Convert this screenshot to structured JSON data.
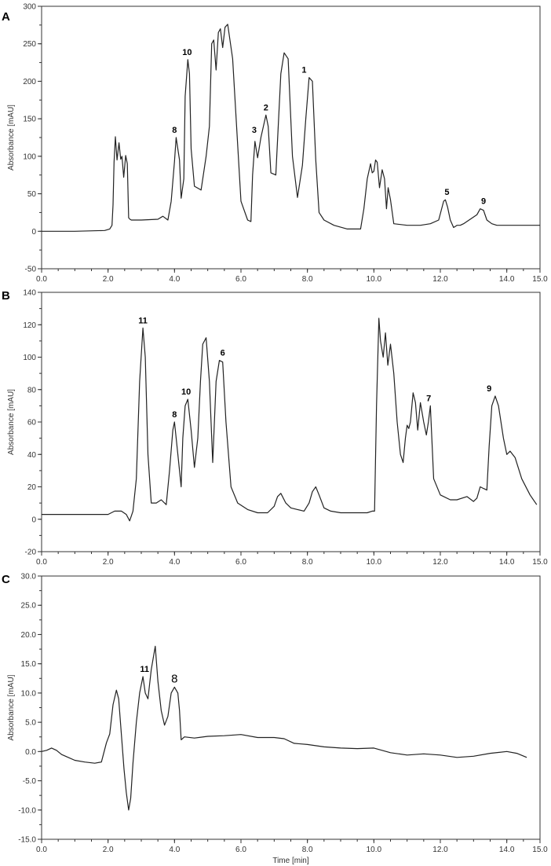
{
  "chart_data": [
    {
      "type": "line",
      "panel_label": "A",
      "ylabel": "Absorbance [mAU]",
      "xlabel": "",
      "xlim": [
        0,
        15
      ],
      "ylim": [
        -50,
        300
      ],
      "xticks": [
        "0.0",
        "2.0",
        "4.0",
        "6.0",
        "8.0",
        "10.0",
        "12.0",
        "14.0",
        "15.0"
      ],
      "xtick_values": [
        0,
        2,
        4,
        6,
        8,
        10,
        12,
        14,
        15
      ],
      "yticks": [
        "300",
        "250",
        "200",
        "150",
        "100",
        "50",
        "0",
        "-50"
      ],
      "ytick_values": [
        300,
        250,
        200,
        150,
        100,
        50,
        0,
        -50
      ],
      "series": [
        {
          "x": [
            0,
            1.0,
            1.9,
            2.05,
            2.12,
            2.15,
            2.18,
            2.22,
            2.27,
            2.33,
            2.38,
            2.42,
            2.47,
            2.53,
            2.58,
            2.62,
            2.66,
            2.7,
            3.0,
            3.5,
            3.65,
            3.8,
            3.9,
            4.0,
            4.05,
            4.15,
            4.2,
            4.28,
            4.32,
            4.4,
            4.45,
            4.5,
            4.6,
            4.8,
            4.95,
            5.05,
            5.12,
            5.18,
            5.25,
            5.32,
            5.38,
            5.45,
            5.52,
            5.6,
            5.75,
            6.0,
            6.2,
            6.3,
            6.35,
            6.42,
            6.5,
            6.6,
            6.75,
            6.82,
            6.9,
            7.05,
            7.2,
            7.3,
            7.42,
            7.55,
            7.7,
            7.85,
            7.95,
            8.05,
            8.15,
            8.25,
            8.35,
            8.5,
            8.8,
            9.2,
            9.6,
            9.7,
            9.8,
            9.9,
            9.95,
            10.0,
            10.05,
            10.1,
            10.17,
            10.25,
            10.32,
            10.38,
            10.43,
            10.5,
            10.6,
            11.0,
            11.4,
            11.7,
            11.95,
            12.1,
            12.15,
            12.22,
            12.3,
            12.4,
            12.5,
            12.6,
            12.7,
            12.9,
            13.1,
            13.2,
            13.3,
            13.4,
            13.55,
            13.7,
            14.0,
            14.5,
            15.0
          ],
          "y": [
            0,
            0,
            1,
            3,
            8,
            35,
            92,
            126,
            95,
            118,
            96,
            100,
            72,
            101,
            90,
            18,
            16,
            15,
            15,
            16,
            20,
            15,
            40,
            93,
            125,
            95,
            44,
            70,
            180,
            229,
            210,
            110,
            60,
            55,
            100,
            140,
            250,
            255,
            215,
            265,
            270,
            245,
            272,
            276,
            230,
            40,
            15,
            13,
            75,
            120,
            98,
            125,
            155,
            140,
            78,
            75,
            210,
            238,
            230,
            100,
            45,
            88,
            150,
            205,
            200,
            95,
            25,
            15,
            8,
            3,
            3,
            30,
            70,
            90,
            78,
            80,
            95,
            92,
            58,
            82,
            70,
            30,
            58,
            42,
            10,
            8,
            8,
            10,
            15,
            40,
            42,
            32,
            15,
            5,
            8,
            8,
            10,
            16,
            22,
            30,
            28,
            15,
            10,
            8,
            8,
            8,
            8
          ]
        }
      ],
      "annotations": [
        {
          "text": "8",
          "x": 4.0,
          "y": 125
        },
        {
          "text": "10",
          "x": 4.38,
          "y": 229
        },
        {
          "text": "3",
          "x": 6.4,
          "y": 125
        },
        {
          "text": "2",
          "x": 6.75,
          "y": 155
        },
        {
          "text": "1",
          "x": 7.9,
          "y": 205
        },
        {
          "text": "5",
          "x": 12.2,
          "y": 42
        },
        {
          "text": "9",
          "x": 13.3,
          "y": 30
        }
      ]
    },
    {
      "type": "line",
      "panel_label": "B",
      "ylabel": "Absorbance [mAU]",
      "xlabel": "",
      "xlim": [
        0,
        15
      ],
      "ylim": [
        -20,
        140
      ],
      "xticks": [
        "0.0",
        "2.0",
        "4.0",
        "6.0",
        "8.0",
        "10.0",
        "12.0",
        "14.0",
        "15.0"
      ],
      "xtick_values": [
        0,
        2,
        4,
        6,
        8,
        10,
        12,
        14,
        15
      ],
      "yticks": [
        "140",
        "120",
        "100",
        "80",
        "60",
        "40",
        "20",
        "0",
        "-20"
      ],
      "ytick_values": [
        140,
        120,
        100,
        80,
        60,
        40,
        20,
        0,
        -20
      ],
      "series": [
        {
          "x": [
            0,
            1.5,
            2.0,
            2.2,
            2.4,
            2.55,
            2.65,
            2.75,
            2.85,
            2.95,
            3.05,
            3.12,
            3.2,
            3.3,
            3.45,
            3.6,
            3.75,
            3.85,
            3.95,
            4.0,
            4.1,
            4.2,
            4.25,
            4.32,
            4.4,
            4.5,
            4.6,
            4.7,
            4.78,
            4.85,
            4.95,
            5.05,
            5.15,
            5.25,
            5.35,
            5.45,
            5.55,
            5.7,
            5.9,
            6.2,
            6.5,
            6.8,
            7.0,
            7.1,
            7.2,
            7.35,
            7.5,
            7.7,
            7.9,
            8.05,
            8.15,
            8.25,
            8.35,
            8.5,
            8.7,
            9.0,
            9.4,
            9.8,
            9.95,
            10.02,
            10.08,
            10.15,
            10.2,
            10.28,
            10.35,
            10.42,
            10.5,
            10.6,
            10.7,
            10.8,
            10.88,
            10.95,
            11.0,
            11.05,
            11.1,
            11.18,
            11.25,
            11.32,
            11.4,
            11.5,
            11.58,
            11.64,
            11.7,
            11.8,
            12.0,
            12.3,
            12.5,
            12.8,
            13.0,
            13.1,
            13.2,
            13.3,
            13.4,
            13.47,
            13.55,
            13.65,
            13.75,
            13.9,
            14.0,
            14.1,
            14.25,
            14.45,
            14.7,
            14.9
          ],
          "y": [
            3,
            3,
            3,
            5,
            5,
            3,
            -1,
            5,
            25,
            85,
            118,
            100,
            40,
            10,
            10,
            12,
            9,
            30,
            55,
            60,
            40,
            20,
            50,
            70,
            74,
            55,
            32,
            50,
            85,
            108,
            112,
            85,
            35,
            85,
            98,
            97,
            60,
            20,
            10,
            6,
            4,
            4,
            8,
            14,
            16,
            10,
            7,
            6,
            5,
            10,
            17,
            20,
            15,
            7,
            5,
            4,
            4,
            4,
            5,
            5,
            70,
            124,
            110,
            100,
            115,
            95,
            108,
            90,
            60,
            40,
            35,
            50,
            58,
            56,
            60,
            78,
            72,
            55,
            72,
            60,
            52,
            60,
            70,
            25,
            15,
            12,
            12,
            14,
            11,
            13,
            20,
            19,
            18,
            45,
            70,
            76,
            70,
            50,
            40,
            42,
            38,
            25,
            15,
            9
          ]
        }
      ],
      "annotations": [
        {
          "text": "11",
          "x": 3.05,
          "y": 118
        },
        {
          "text": "8",
          "x": 4.0,
          "y": 60
        },
        {
          "text": "10",
          "x": 4.35,
          "y": 74
        },
        {
          "text": "6",
          "x": 5.45,
          "y": 98
        },
        {
          "text": "7",
          "x": 11.65,
          "y": 70
        },
        {
          "text": "9",
          "x": 13.47,
          "y": 76
        }
      ]
    },
    {
      "type": "line",
      "panel_label": "C",
      "ylabel": "Absorbance [mAU]",
      "xlabel": "Time [min]",
      "xlim": [
        0,
        15
      ],
      "ylim": [
        -15,
        30
      ],
      "xticks": [
        "0.0",
        "2.0",
        "4.0",
        "6.0",
        "8.0",
        "10.0",
        "12.0",
        "14.0",
        "15.0"
      ],
      "xtick_values": [
        0,
        2,
        4,
        6,
        8,
        10,
        12,
        14,
        15
      ],
      "yticks": [
        "30.0",
        "25.0",
        "20.0",
        "15.0",
        "10.0",
        "5.0",
        "0.0",
        "-5.0",
        "-10.0",
        "-15.0"
      ],
      "ytick_values": [
        30,
        25,
        20,
        15,
        10,
        5,
        0,
        -5,
        -10,
        -15
      ],
      "series": [
        {
          "x": [
            0,
            0.15,
            0.3,
            0.45,
            0.6,
            0.8,
            1.0,
            1.3,
            1.6,
            1.8,
            1.95,
            2.05,
            2.15,
            2.25,
            2.32,
            2.4,
            2.48,
            2.55,
            2.62,
            2.68,
            2.75,
            2.85,
            2.95,
            3.05,
            3.12,
            3.2,
            3.3,
            3.42,
            3.5,
            3.6,
            3.7,
            3.8,
            3.9,
            4.0,
            4.1,
            4.15,
            4.2,
            4.3,
            4.6,
            5.0,
            5.5,
            6.0,
            6.5,
            7.0,
            7.3,
            7.6,
            8.0,
            8.5,
            9.0,
            9.5,
            10.0,
            10.5,
            11.0,
            11.5,
            12.0,
            12.5,
            13.0,
            13.5,
            14.0,
            14.3,
            14.6
          ],
          "y": [
            0,
            0.2,
            0.6,
            0.2,
            -0.5,
            -1.0,
            -1.5,
            -1.8,
            -2.0,
            -1.8,
            1.5,
            3.0,
            8.0,
            10.5,
            9.0,
            3.0,
            -3.0,
            -7.0,
            -10.0,
            -8.0,
            -2.0,
            5.0,
            10.0,
            12.8,
            10.0,
            9.0,
            14.0,
            18.0,
            12.0,
            7.0,
            4.5,
            6.0,
            10.0,
            11.0,
            10.0,
            7.0,
            2.0,
            2.5,
            2.3,
            2.6,
            2.7,
            2.9,
            2.4,
            2.4,
            2.2,
            1.4,
            1.2,
            0.8,
            0.6,
            0.5,
            0.6,
            -0.2,
            -0.6,
            -0.4,
            -0.6,
            -1.0,
            -0.8,
            -0.3,
            0.0,
            -0.3,
            -1.0
          ]
        }
      ],
      "annotations": [
        {
          "text": "11",
          "x": 3.1,
          "y": 12.8
        },
        {
          "text": "8",
          "x": 4.0,
          "y": 11.0
        }
      ]
    }
  ]
}
